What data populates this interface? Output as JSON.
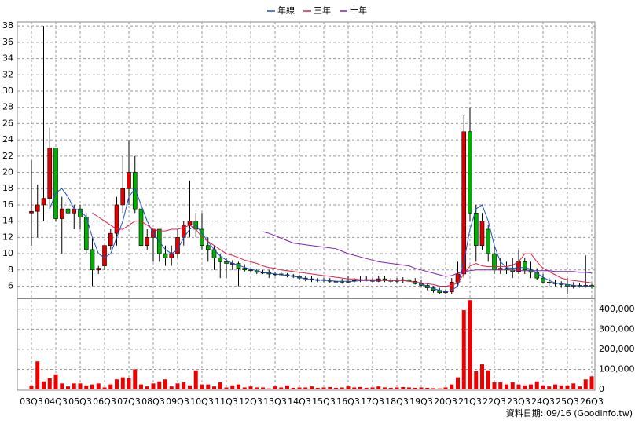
{
  "chart_data": {
    "type": "candlestick",
    "note": "資料日期: 09/16 (Goodinfo.tw)",
    "up_color": "#e00000",
    "down_color": "#00b000",
    "doji_color": "#000000",
    "grid": true,
    "legend": "top",
    "categories": [
      "03Q3",
      null,
      null,
      null,
      "04Q3",
      null,
      null,
      null,
      "05Q3",
      null,
      null,
      null,
      "06Q3",
      null,
      null,
      null,
      "07Q3",
      null,
      null,
      null,
      "08Q3",
      null,
      null,
      null,
      "09Q3",
      null,
      null,
      null,
      "10Q3",
      null,
      null,
      null,
      "11Q3",
      null,
      null,
      null,
      "12Q3",
      null,
      null,
      null,
      "13Q3",
      null,
      null,
      null,
      "14Q3",
      null,
      null,
      null,
      "15Q3",
      null,
      null,
      null,
      "16Q3",
      null,
      null,
      null,
      "17Q3",
      null,
      null,
      null,
      "18Q3",
      null,
      null,
      null,
      "19Q3",
      null,
      null,
      null,
      "20Q3",
      null,
      null,
      null,
      "21Q3",
      null,
      null,
      null,
      "22Q3",
      null,
      null,
      null,
      "23Q3",
      null,
      null,
      null,
      "24Q3",
      null,
      null,
      null,
      "25Q3",
      null,
      null,
      null,
      "26Q3"
    ],
    "candles": [
      [
        15,
        21.5,
        11,
        15.2
      ],
      [
        15.2,
        18.5,
        12,
        16
      ],
      [
        16,
        38,
        14,
        16.8
      ],
      [
        16.8,
        25.5,
        15.5,
        23
      ],
      [
        23,
        23,
        14,
        14.3
      ],
      [
        14.3,
        17,
        10,
        15.5
      ],
      [
        15.5,
        16,
        8,
        15
      ],
      [
        15,
        16,
        13,
        15.5
      ],
      [
        15.5,
        16,
        13,
        14.5
      ],
      [
        14.5,
        15,
        10,
        10.5
      ],
      [
        10.5,
        12,
        6,
        8
      ],
      [
        8,
        8.5,
        7.5,
        8.2
      ],
      [
        8.5,
        11,
        8,
        11
      ],
      [
        11,
        13,
        10.5,
        12.5
      ],
      [
        12.5,
        17,
        11,
        16
      ],
      [
        16,
        22,
        15,
        18
      ],
      [
        18,
        24,
        16,
        20
      ],
      [
        20,
        22,
        15,
        15.5
      ],
      [
        15.5,
        16,
        10,
        11
      ],
      [
        11,
        13,
        10.5,
        12
      ],
      [
        12,
        13,
        9,
        13
      ],
      [
        13,
        13,
        9,
        10
      ],
      [
        10,
        11,
        8.5,
        9.5
      ],
      [
        9.5,
        11,
        8.5,
        10
      ],
      [
        10,
        13,
        9.5,
        12
      ],
      [
        12,
        14,
        11,
        13.5
      ],
      [
        13.5,
        19,
        12,
        14
      ],
      [
        14,
        15,
        12,
        13
      ],
      [
        13,
        15,
        10.5,
        11
      ],
      [
        11,
        12,
        9,
        10.5
      ],
      [
        10.5,
        11,
        8,
        9.5
      ],
      [
        9.5,
        10,
        7,
        9
      ],
      [
        9,
        9.5,
        7,
        8.8
      ],
      [
        8.8,
        9.2,
        8,
        8.8
      ],
      [
        8.8,
        9,
        6,
        8.2
      ],
      [
        8.2,
        8.7,
        7.8,
        8
      ],
      [
        8,
        8.2,
        7.7,
        7.9
      ],
      [
        7.9,
        8.1,
        7.5,
        7.7
      ],
      [
        7.7,
        8,
        7.5,
        7.7
      ],
      [
        7.7,
        8,
        7,
        7.5
      ],
      [
        7.5,
        7.8,
        7.2,
        7.5
      ],
      [
        7.5,
        7.7,
        7.2,
        7.4
      ],
      [
        7.4,
        7.6,
        7.1,
        7.3
      ],
      [
        7.3,
        7.5,
        7,
        7.2
      ],
      [
        7.2,
        7.4,
        6.8,
        7
      ],
      [
        7,
        7.3,
        6.6,
        6.9
      ],
      [
        6.9,
        7.2,
        6.5,
        6.8
      ],
      [
        6.8,
        7,
        6.5,
        6.8
      ],
      [
        6.8,
        7,
        6.5,
        6.7
      ],
      [
        6.7,
        7,
        6.4,
        6.6
      ],
      [
        6.6,
        7,
        6.3,
        6.6
      ],
      [
        6.6,
        6.9,
        6.3,
        6.5
      ],
      [
        6.5,
        7.2,
        6.4,
        6.6
      ],
      [
        6.6,
        7,
        6.4,
        6.7
      ],
      [
        6.7,
        7.2,
        6.5,
        6.8
      ],
      [
        6.8,
        7.2,
        6.6,
        6.7
      ],
      [
        6.7,
        7,
        6.5,
        6.6
      ],
      [
        6.6,
        7.3,
        6.5,
        6.9
      ],
      [
        6.9,
        7.2,
        6.5,
        6.7
      ],
      [
        6.7,
        7,
        6.4,
        6.6
      ],
      [
        6.6,
        7,
        6.3,
        6.7
      ],
      [
        6.7,
        7.1,
        6.4,
        6.8
      ],
      [
        6.8,
        7.2,
        6.5,
        6.6
      ],
      [
        6.6,
        7,
        6.2,
        6.3
      ],
      [
        6.3,
        6.8,
        5.9,
        6.1
      ],
      [
        6.1,
        6.4,
        5.5,
        5.8
      ],
      [
        5.8,
        6,
        5.2,
        5.5
      ],
      [
        5.5,
        5.8,
        5,
        5.2
      ],
      [
        5.2,
        5.6,
        5,
        5.3
      ],
      [
        5.3,
        7,
        5,
        6.5
      ],
      [
        6.5,
        9,
        6,
        7.5
      ],
      [
        7.5,
        27,
        7,
        25
      ],
      [
        25,
        28,
        14,
        15
      ],
      [
        15,
        16,
        9,
        11
      ],
      [
        11,
        15,
        10.5,
        14
      ],
      [
        13,
        13.5,
        9,
        10
      ],
      [
        10,
        11,
        7.5,
        8
      ],
      [
        8,
        9.5,
        7.5,
        8.2
      ],
      [
        8.2,
        9,
        7.5,
        8
      ],
      [
        8,
        9.5,
        7,
        7.8
      ],
      [
        7.8,
        10.5,
        7.5,
        9
      ],
      [
        9,
        9.5,
        7.5,
        8
      ],
      [
        8,
        9,
        7,
        7.7
      ],
      [
        7.7,
        8.2,
        6.8,
        7
      ],
      [
        7,
        7.5,
        6.3,
        6.5
      ],
      [
        6.5,
        7,
        6,
        6.4
      ],
      [
        6.4,
        6.8,
        6,
        6.3
      ],
      [
        6.3,
        6.6,
        5.8,
        6.2
      ],
      [
        6.2,
        7,
        5,
        6
      ],
      [
        6,
        6.5,
        5.7,
        6.1
      ],
      [
        6.1,
        6.4,
        5.8,
        6
      ],
      [
        6,
        9.8,
        5.8,
        6.1
      ],
      [
        6.1,
        6.3,
        5.7,
        5.9
      ]
    ],
    "series": [
      {
        "name": "年線",
        "color": "#1e50c8",
        "values": [
          null,
          null,
          null,
          15.5,
          17.5,
          18,
          17,
          15.5,
          15.3,
          14.5,
          12,
          10,
          9.5,
          10,
          12,
          14,
          17,
          18,
          16,
          14,
          12.5,
          11.5,
          10.5,
          10,
          10.5,
          12,
          13,
          13.5,
          12.5,
          11.5,
          10.5,
          9.7,
          9.2,
          8.8,
          8.6,
          8.3,
          8.1,
          7.9,
          7.7,
          7.6,
          7.5,
          7.4,
          7.3,
          7.2,
          7.1,
          6.9,
          6.8,
          6.8,
          6.7,
          6.7,
          6.6,
          6.6,
          6.6,
          6.6,
          6.7,
          6.7,
          6.7,
          6.7,
          6.7,
          6.7,
          6.7,
          6.7,
          6.6,
          6.5,
          6.3,
          6,
          5.7,
          5.5,
          5.3,
          5.5,
          6,
          9,
          13,
          15.5,
          16,
          14,
          11,
          9,
          8.3,
          8.2,
          8.3,
          8.3,
          8.1,
          7.6,
          7.1,
          6.7,
          6.4,
          6.3,
          6.2,
          6.1,
          6,
          6,
          6
        ]
      },
      {
        "name": "三年",
        "color": "#e0204a",
        "values": [
          null,
          null,
          null,
          null,
          null,
          null,
          null,
          null,
          null,
          null,
          15,
          14.5,
          14,
          13.5,
          13,
          13,
          13.5,
          14,
          14,
          13.5,
          13,
          12.8,
          12.8,
          13,
          13,
          13.2,
          13.5,
          13,
          12,
          11.5,
          11,
          10.5,
          10,
          9.8,
          9.5,
          9.2,
          9,
          8.8,
          8.5,
          8.3,
          8.2,
          8,
          7.9,
          7.8,
          7.7,
          7.6,
          7.5,
          7.4,
          7.3,
          7.2,
          7.1,
          7,
          6.9,
          6.9,
          6.8,
          6.8,
          6.8,
          6.8,
          6.7,
          6.7,
          6.7,
          6.7,
          6.6,
          6.5,
          6.4,
          6.3,
          6.2,
          6,
          6,
          6.1,
          6.4,
          7.5,
          8.5,
          8.8,
          8.5,
          8.4,
          8.4,
          8.4,
          8.4,
          8.6,
          9,
          10,
          10,
          9,
          8.2,
          7.8,
          7.4,
          7,
          6.8,
          6.7,
          6.6,
          6.5,
          6.4
        ]
      },
      {
        "name": "十年",
        "color": "#8020b0",
        "values": [
          null,
          null,
          null,
          null,
          null,
          null,
          null,
          null,
          null,
          null,
          null,
          null,
          null,
          null,
          null,
          null,
          null,
          null,
          null,
          null,
          null,
          null,
          null,
          null,
          null,
          null,
          null,
          null,
          null,
          null,
          null,
          null,
          null,
          null,
          null,
          null,
          null,
          null,
          12.7,
          12.5,
          12.2,
          11.9,
          11.6,
          11.3,
          11.2,
          11.1,
          11,
          10.9,
          10.8,
          10.7,
          10.6,
          10.3,
          10,
          9.8,
          9.6,
          9.4,
          9.2,
          9,
          8.9,
          8.8,
          8.7,
          8.6,
          8.5,
          8.2,
          8,
          7.8,
          7.6,
          7.4,
          7.2,
          7.3,
          7.6,
          7.8,
          7.9,
          8,
          8,
          8,
          8,
          8,
          8,
          8,
          7.9,
          7.9,
          7.9,
          7.9,
          7.9,
          7.9,
          7.8,
          7.8,
          7.8,
          7.8,
          7.7,
          7.7,
          7.6
        ]
      }
    ],
    "ylim": [
      4.5,
      38.5
    ],
    "yticks": [
      6,
      8,
      10,
      12,
      14,
      16,
      18,
      20,
      22,
      24,
      26,
      28,
      30,
      32,
      34,
      36,
      38
    ],
    "volume": {
      "color": "#ee0000",
      "values": [
        20000,
        140000,
        40000,
        55000,
        75000,
        30000,
        15000,
        30000,
        30000,
        20000,
        25000,
        30000,
        10000,
        25000,
        50000,
        60000,
        55000,
        100000,
        25000,
        15000,
        30000,
        40000,
        50000,
        15000,
        30000,
        35000,
        20000,
        95000,
        25000,
        25000,
        15000,
        35000,
        10000,
        20000,
        25000,
        10000,
        15000,
        10000,
        10000,
        5000,
        15000,
        10000,
        20000,
        8000,
        10000,
        10000,
        15000,
        8000,
        10000,
        12000,
        8000,
        10000,
        15000,
        10000,
        12000,
        8000,
        10000,
        15000,
        10000,
        8000,
        10000,
        12000,
        10000,
        8000,
        10000,
        8000,
        6000,
        5000,
        10000,
        25000,
        60000,
        395000,
        445000,
        90000,
        125000,
        95000,
        35000,
        35000,
        25000,
        35000,
        25000,
        20000,
        25000,
        40000,
        20000,
        15000,
        25000,
        20000,
        20000,
        30000,
        15000,
        50000,
        65000
      ],
      "ylim": [
        0,
        450000
      ],
      "yticks": [
        0,
        {
          "value": 100000,
          "label": "100,000"
        },
        {
          "value": 200000,
          "label": "200,000"
        },
        {
          "value": 300000,
          "label": "300,000"
        },
        {
          "value": 400000,
          "label": "400,000"
        }
      ]
    }
  }
}
